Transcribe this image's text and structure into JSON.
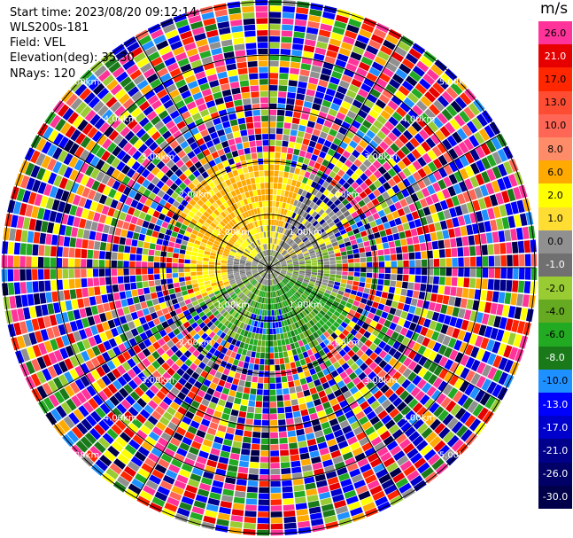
{
  "info": {
    "start_time": "Start time: 2023/08/20 09:12:14",
    "device": "WLS200s-181",
    "field": "Field: VEL",
    "elevation": "Elevation(deg): 35.30",
    "nrays": "NRays: 120"
  },
  "colorbar": {
    "unit": "m/s",
    "levels": [
      {
        "label": "26.0",
        "color": "#ff3399",
        "text": "#000000"
      },
      {
        "label": "21.0",
        "color": "#e60000",
        "text": "#ffffff"
      },
      {
        "label": "17.0",
        "color": "#ff2600",
        "text": "#000000"
      },
      {
        "label": "13.0",
        "color": "#ff4d33",
        "text": "#000000"
      },
      {
        "label": "10.0",
        "color": "#ff6655",
        "text": "#000000"
      },
      {
        "label": "8.0",
        "color": "#ff8c69",
        "text": "#000000"
      },
      {
        "label": "6.0",
        "color": "#ffaa00",
        "text": "#000000"
      },
      {
        "label": "2.0",
        "color": "#ffff00",
        "text": "#000000"
      },
      {
        "label": "1.0",
        "color": "#ffdd33",
        "text": "#000000"
      },
      {
        "label": "0.0",
        "color": "#909090",
        "text": "#000000"
      },
      {
        "label": "-1.0",
        "color": "#707070",
        "text": "#ffffff"
      },
      {
        "label": "-2.0",
        "color": "#99cc33",
        "text": "#000000"
      },
      {
        "label": "-4.0",
        "color": "#66aa22",
        "text": "#000000"
      },
      {
        "label": "-6.0",
        "color": "#22aa22",
        "text": "#000000"
      },
      {
        "label": "-8.0",
        "color": "#1a7a1a",
        "text": "#ffffff"
      },
      {
        "label": "-10.0",
        "color": "#1e90ff",
        "text": "#000000"
      },
      {
        "label": "-13.0",
        "color": "#0000ff",
        "text": "#ffffff"
      },
      {
        "label": "-17.0",
        "color": "#0000cc",
        "text": "#ffffff"
      },
      {
        "label": "-21.0",
        "color": "#00008b",
        "text": "#ffffff"
      },
      {
        "label": "-26.0",
        "color": "#000066",
        "text": "#ffffff"
      },
      {
        "label": "-30.0",
        "color": "#00004a",
        "text": "#ffffff"
      }
    ]
  },
  "chart_data": {
    "type": "heatmap",
    "projection": "polar (PPI)",
    "field": "VEL",
    "units": "m/s",
    "nrays": 120,
    "range_rings": [
      {
        "label": "1.00km"
      },
      {
        "label": "2.00km"
      },
      {
        "label": "3.00km"
      },
      {
        "label": "4.00km"
      },
      {
        "label": "5.00km"
      }
    ],
    "palette": [
      "#ff3399",
      "#e60000",
      "#ff2600",
      "#ff4d33",
      "#ff6655",
      "#ff8c69",
      "#ffaa00",
      "#ffff00",
      "#ffdd33",
      "#909090",
      "#707070",
      "#99cc33",
      "#66aa22",
      "#22aa22",
      "#1a7a1a",
      "#1e90ff",
      "#0000ff",
      "#0000cc",
      "#00008b",
      "#000066",
      "#00004a"
    ],
    "sectors": [
      {
        "direction": "north to northwest",
        "near_range": "yellow/orange (positive ~2 to 6 m/s)"
      },
      {
        "direction": "south",
        "near_range": "green (negative ~-4 to -8 m/s)"
      },
      {
        "direction": "center",
        "near_range": "gray (~0 m/s)"
      },
      {
        "direction": "beyond ~2.5km",
        "near_range": "noisy mixed colors"
      }
    ]
  }
}
